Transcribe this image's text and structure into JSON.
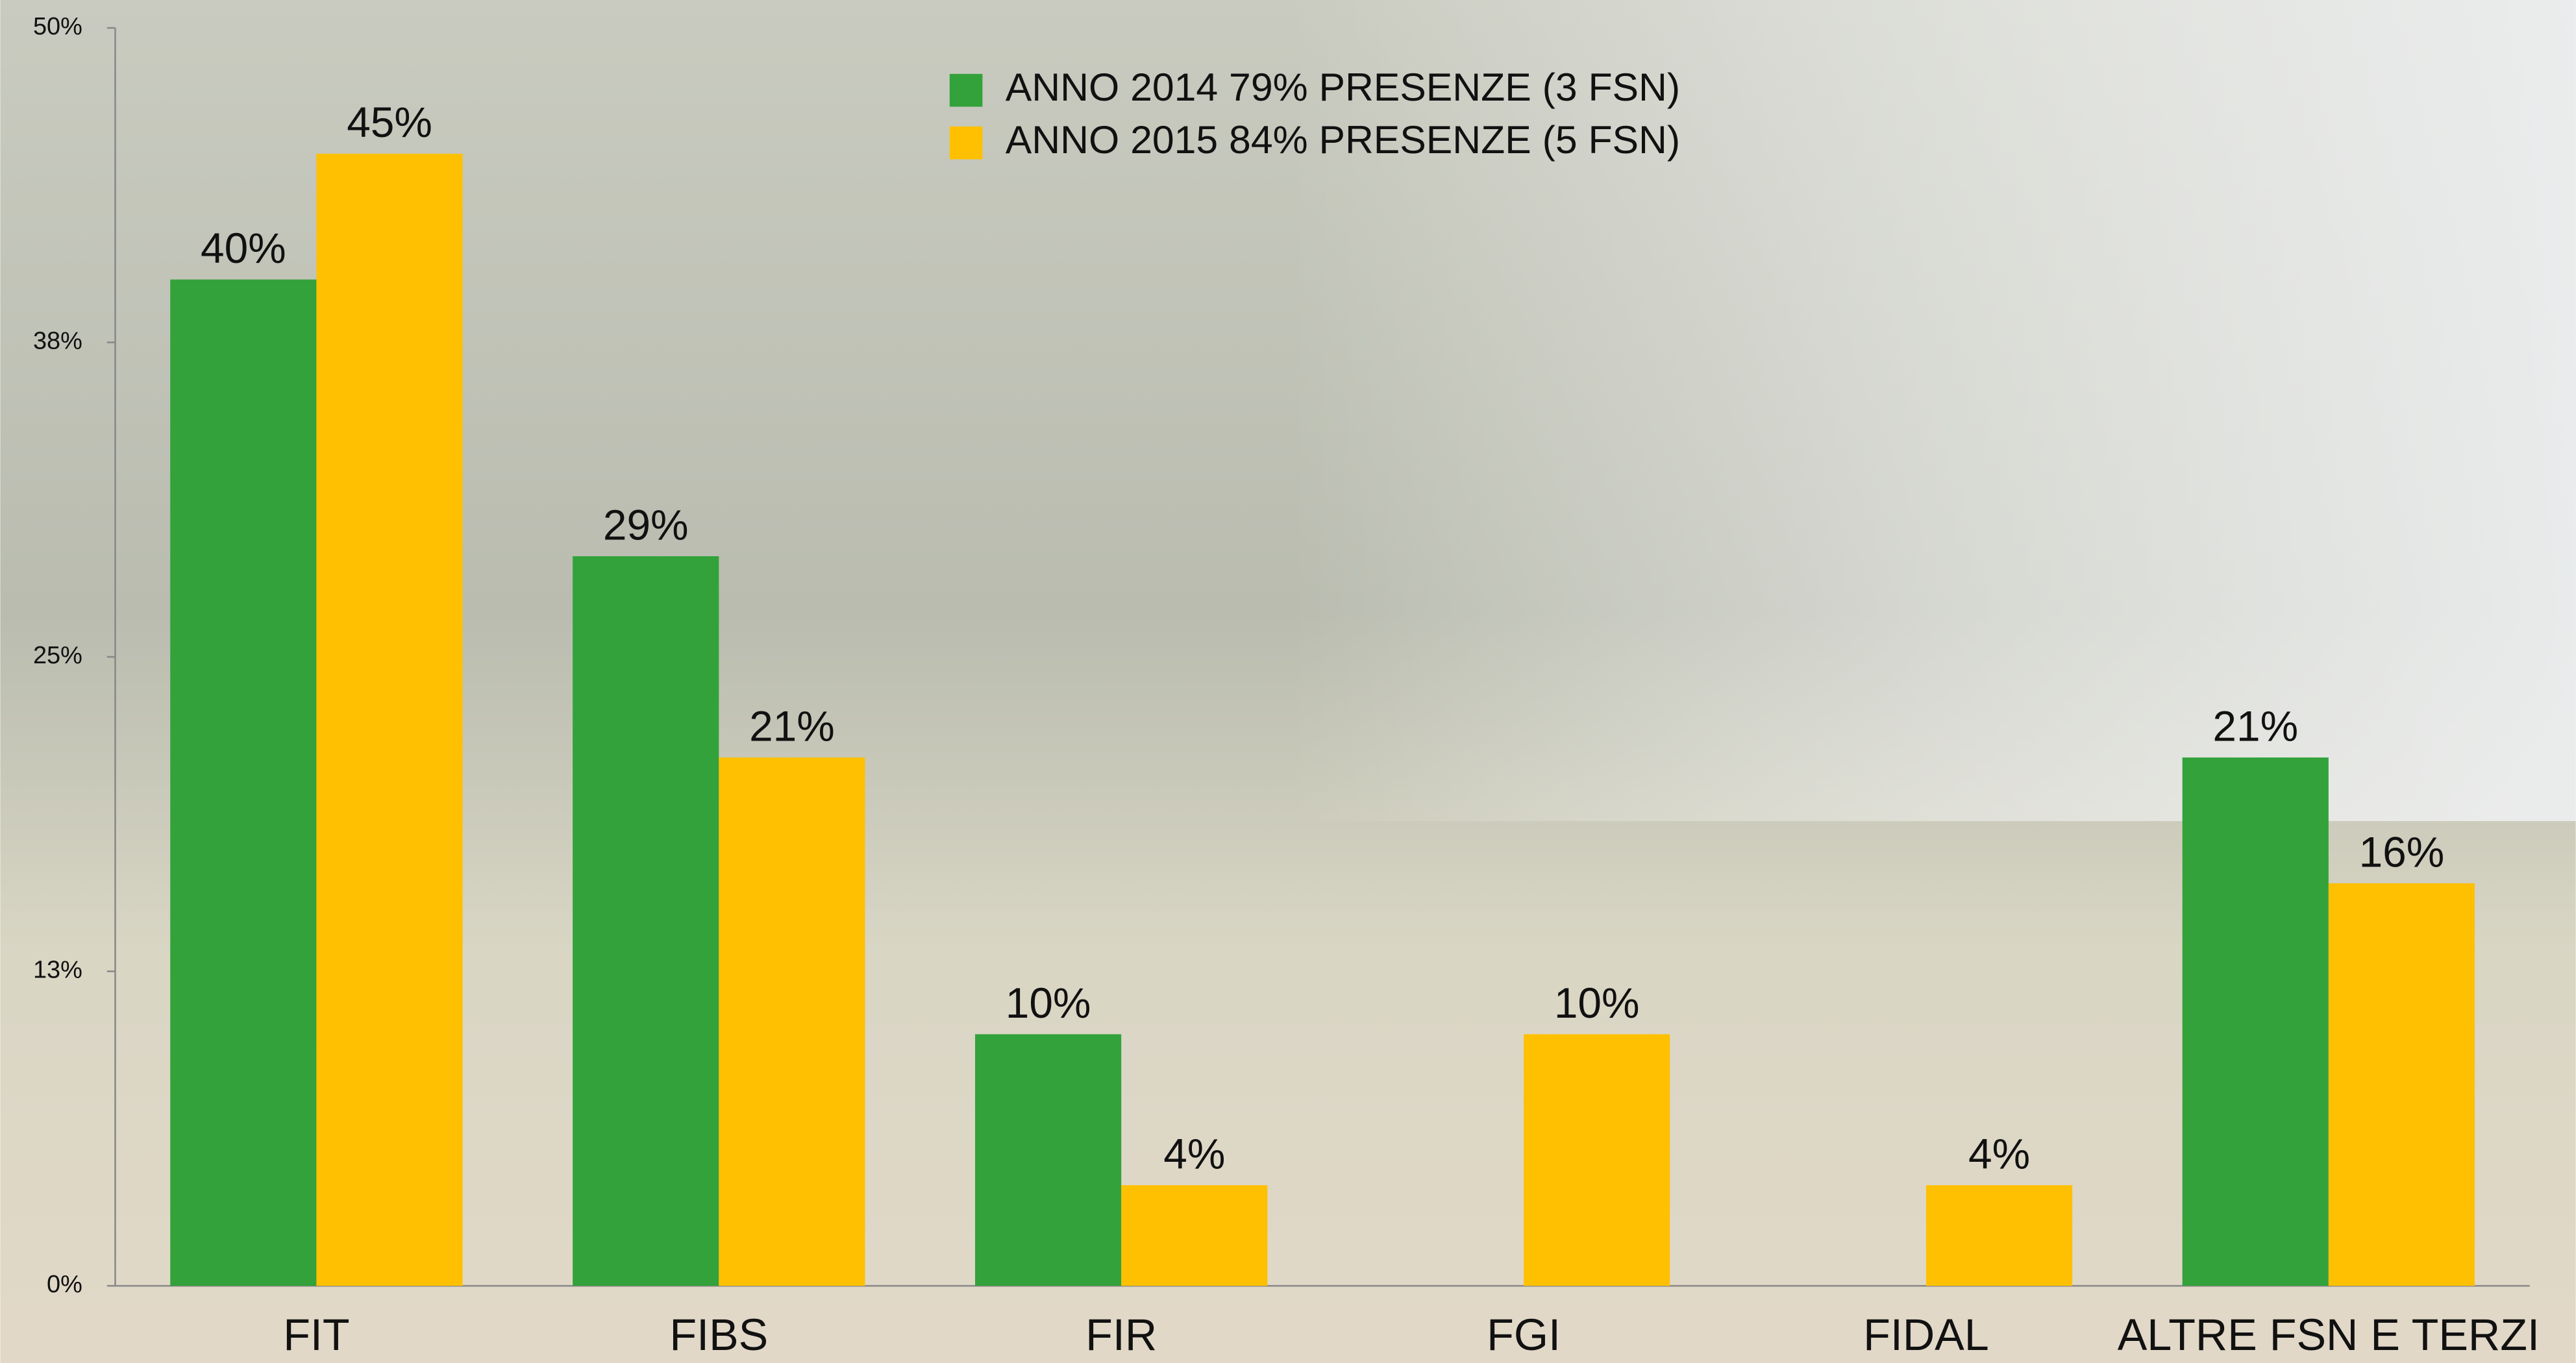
{
  "chart_data": {
    "type": "bar",
    "categories": [
      "FIT",
      "FIBS",
      "FIR",
      "FGI",
      "FIDAL",
      "ALTRE FSN E TERZI"
    ],
    "series": [
      {
        "name": "ANNO 2014 79% PRESENZE (3 FSN)",
        "color": "#33a23a",
        "values": [
          40,
          29,
          10,
          null,
          null,
          21
        ],
        "value_labels": [
          "40%",
          "29%",
          "10%",
          null,
          null,
          "21%"
        ]
      },
      {
        "name": "ANNO 2015 84% PRESENZE (5 FSN)",
        "color": "#fec000",
        "values": [
          45,
          21,
          4,
          10,
          4,
          16
        ],
        "value_labels": [
          "45%",
          "21%",
          "4%",
          "10%",
          "4%",
          "16%"
        ]
      }
    ],
    "ylim": [
      0,
      50
    ],
    "yticks": [
      {
        "value": 0,
        "label": "0%"
      },
      {
        "value": 12.5,
        "label": "13%"
      },
      {
        "value": 25,
        "label": "25%"
      },
      {
        "value": 37.5,
        "label": "38%"
      },
      {
        "value": 50,
        "label": "50%"
      }
    ],
    "grid": false,
    "legend": "top"
  }
}
